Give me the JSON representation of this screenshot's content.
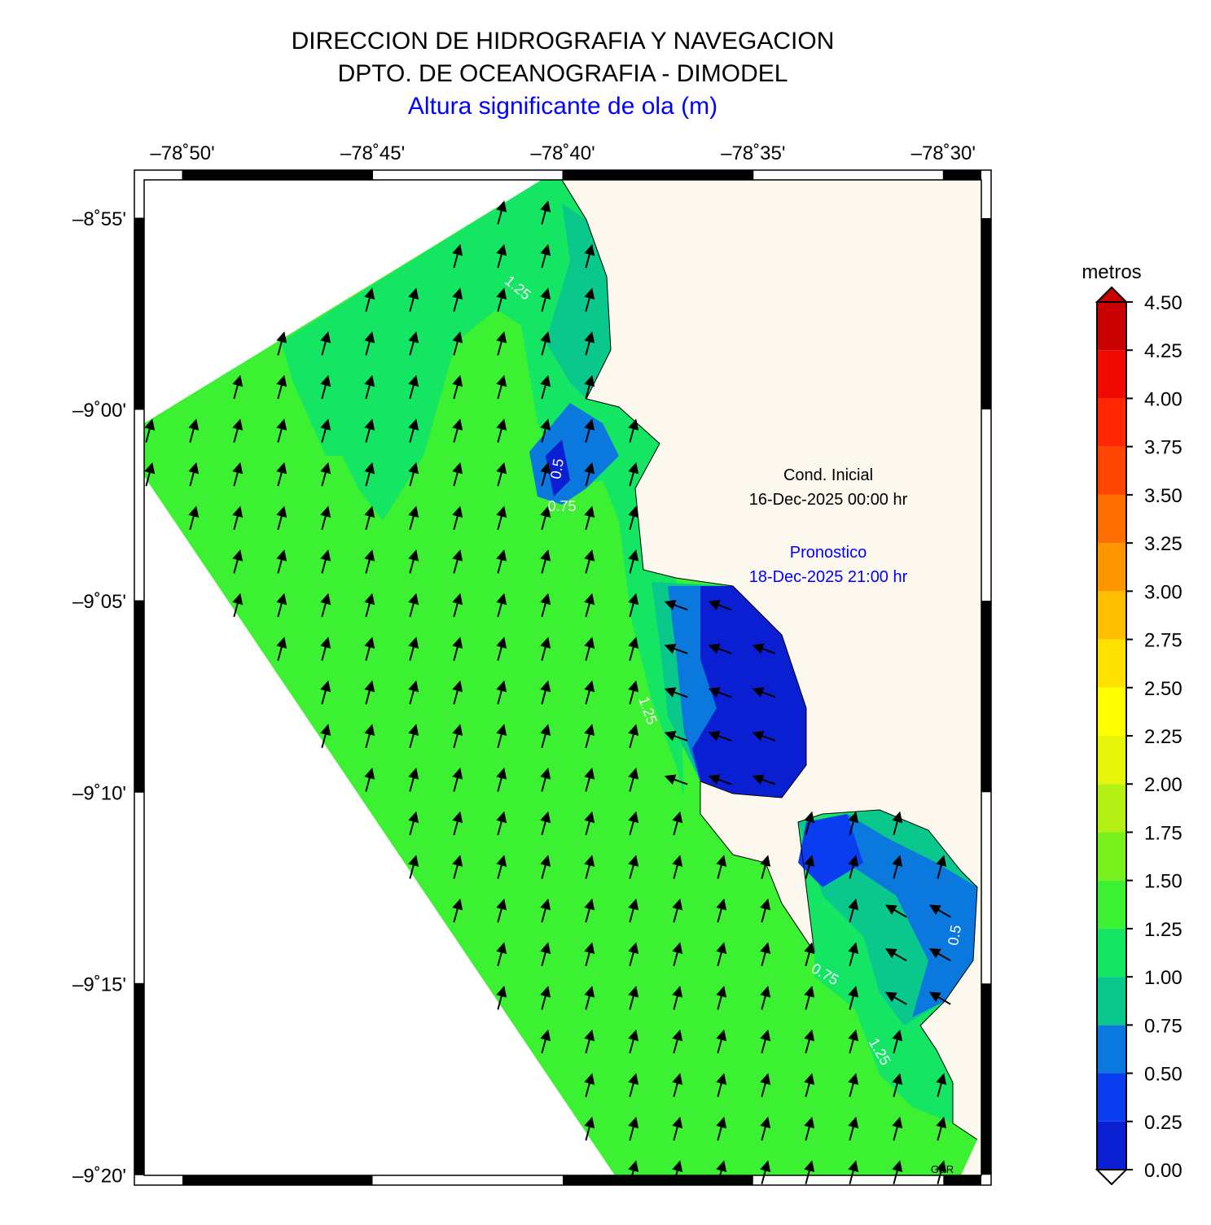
{
  "header": {
    "lines": [
      "DIRECCION DE HIDROGRAFIA Y NAVEGACION",
      "DPTO. DE OCEANOGRAFIA - DIMODEL",
      "Altura significante de ola (m)"
    ]
  },
  "map": {
    "lon_ticks": [
      {
        "value": -78.8333,
        "label": "–78˚50'"
      },
      {
        "value": -78.75,
        "label": "–78˚45'"
      },
      {
        "value": -78.6667,
        "label": "–78˚40'"
      },
      {
        "value": -78.5833,
        "label": "–78˚35'"
      },
      {
        "value": -78.5,
        "label": "–78˚30'"
      }
    ],
    "lat_ticks": [
      {
        "value": -8.9167,
        "label": "–8˚55'"
      },
      {
        "value": -9.0,
        "label": "–9˚00'"
      },
      {
        "value": -9.0833,
        "label": "–9˚05'"
      },
      {
        "value": -9.1667,
        "label": "–9˚10'"
      },
      {
        "value": -9.25,
        "label": "–9˚15'"
      },
      {
        "value": -9.3333,
        "label": "–9˚20'"
      }
    ],
    "annotations": {
      "initial_label": "Cond. Inicial",
      "initial_date": "16-Dec-2025 00:00 hr",
      "forecast_label": "Pronostico",
      "forecast_date": "18-Dec-2025 21:00 hr",
      "credit": "G&R"
    },
    "contour_labels": [
      "1.25",
      "0.5",
      "0.75",
      "1.25",
      "0.75",
      "1.25",
      "0.5"
    ]
  },
  "colorbar": {
    "title": "metros",
    "ticks": [
      {
        "value": 0,
        "label": "0.00"
      },
      {
        "value": 0.25,
        "label": "0.25"
      },
      {
        "value": 0.5,
        "label": "0.50"
      },
      {
        "value": 0.75,
        "label": "0.75"
      },
      {
        "value": 1,
        "label": "1.00"
      },
      {
        "value": 1.25,
        "label": "1.25"
      },
      {
        "value": 1.5,
        "label": "1.50"
      },
      {
        "value": 1.75,
        "label": "1.75"
      },
      {
        "value": 2,
        "label": "2.00"
      },
      {
        "value": 2.25,
        "label": "2.25"
      },
      {
        "value": 2.5,
        "label": "2.50"
      },
      {
        "value": 2.75,
        "label": "2.75"
      },
      {
        "value": 3,
        "label": "3.00"
      },
      {
        "value": 3.25,
        "label": "3.25"
      },
      {
        "value": 3.5,
        "label": "3.50"
      },
      {
        "value": 3.75,
        "label": "3.75"
      },
      {
        "value": 4,
        "label": "4.00"
      },
      {
        "value": 4.25,
        "label": "4.25"
      },
      {
        "value": 4.5,
        "label": "4.50"
      }
    ],
    "colors": [
      "#0a1ed2",
      "#0a3cf0",
      "#0a78dc",
      "#0ac88c",
      "#14e664",
      "#3cf032",
      "#78f01e",
      "#b4f014",
      "#e6f50a",
      "#ffff00",
      "#ffe100",
      "#ffbe00",
      "#ff9600",
      "#ff6e00",
      "#ff4600",
      "#ff2800",
      "#f00a00",
      "#c80000"
    ]
  }
}
